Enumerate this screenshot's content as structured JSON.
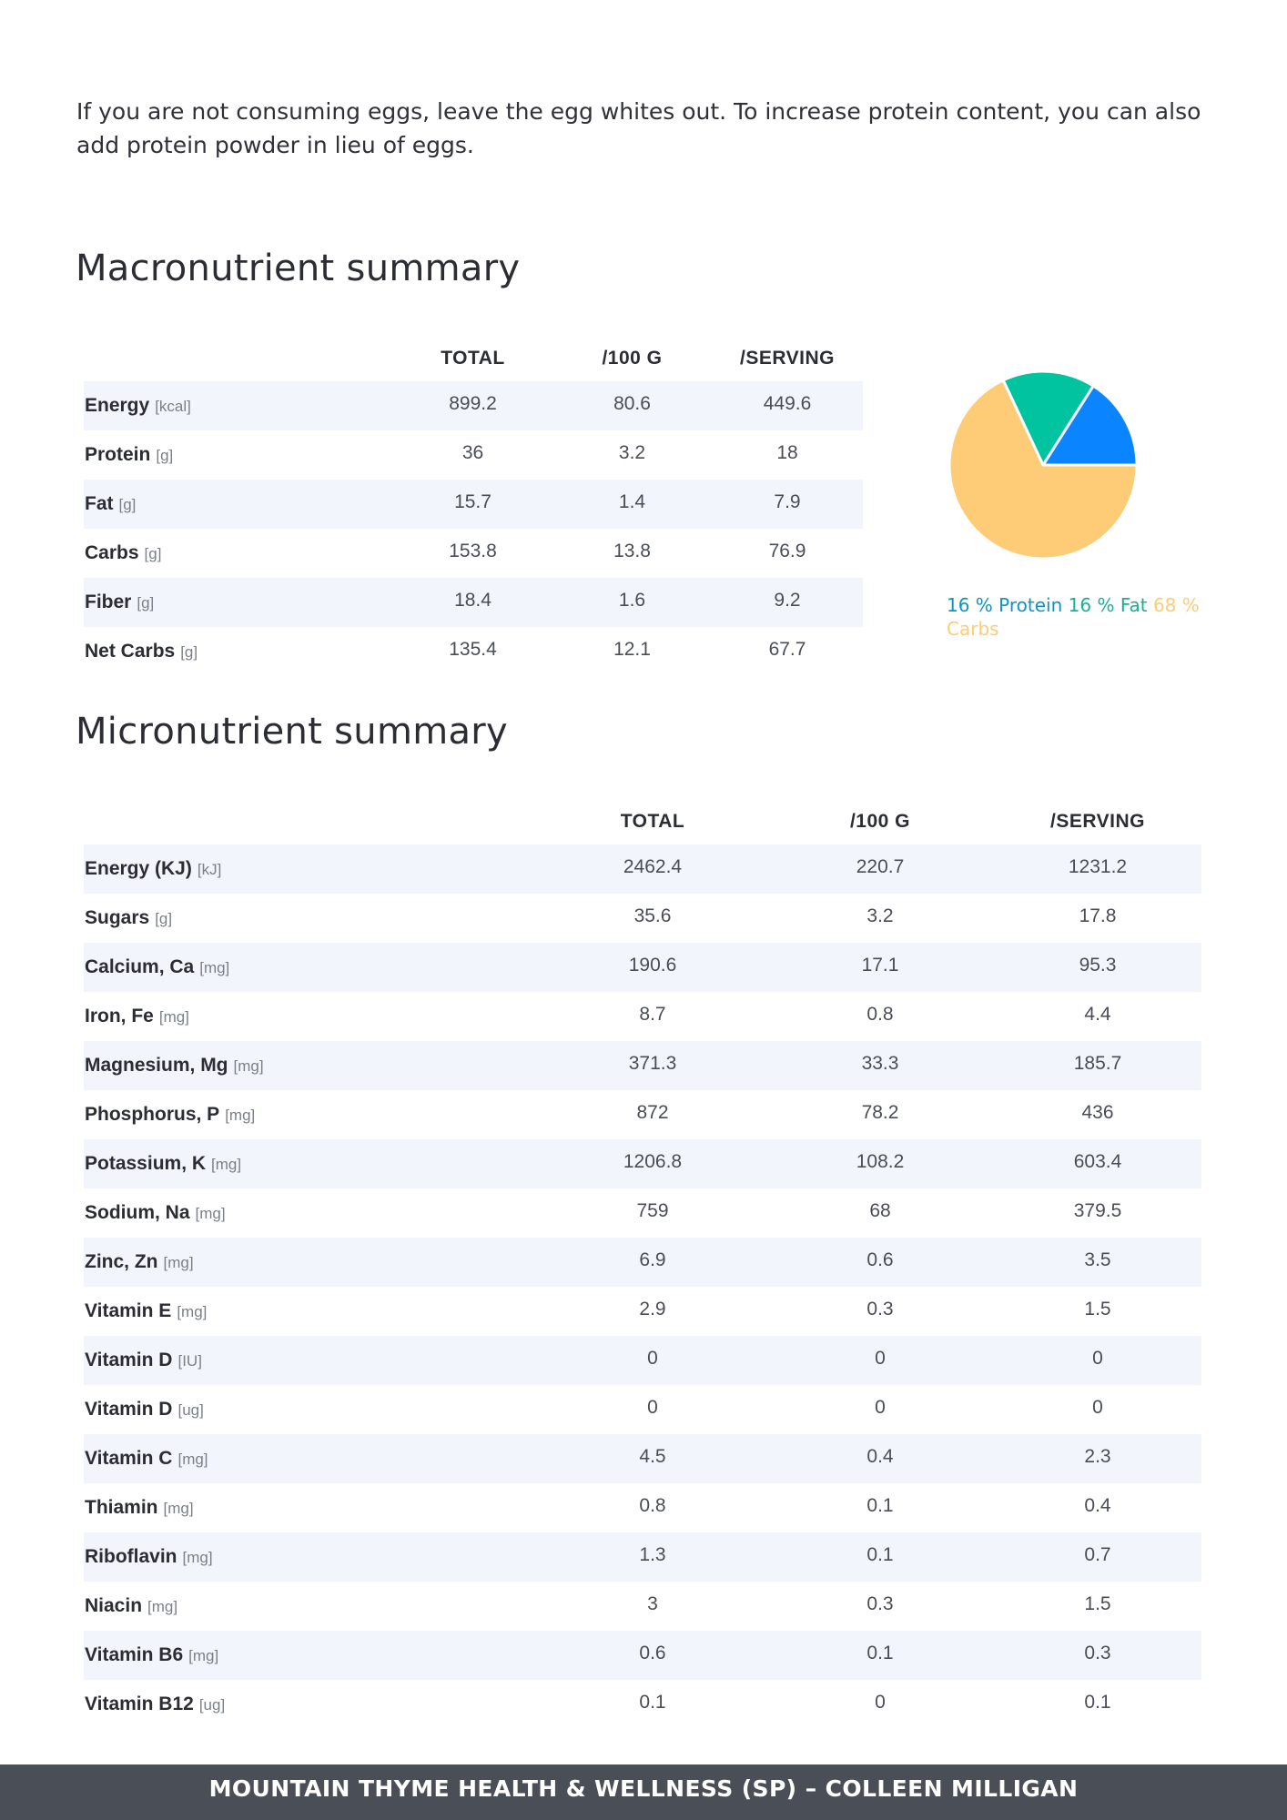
{
  "intro_text": "If you are not consuming eggs, leave the egg whites out. To increase protein content, you can also add protein powder in lieu of eggs.",
  "macro": {
    "title": "Macronutrient summary",
    "headers": [
      "",
      "TOTAL",
      "/100 G",
      "/SERVING"
    ],
    "rows": [
      {
        "name": "Energy",
        "unit": "[kcal]",
        "total": "899.2",
        "per100g": "80.6",
        "serving": "449.6"
      },
      {
        "name": "Protein",
        "unit": "[g]",
        "total": "36",
        "per100g": "3.2",
        "serving": "18"
      },
      {
        "name": "Fat",
        "unit": "[g]",
        "total": "15.7",
        "per100g": "1.4",
        "serving": "7.9"
      },
      {
        "name": "Carbs",
        "unit": "[g]",
        "total": "153.8",
        "per100g": "13.8",
        "serving": "76.9"
      },
      {
        "name": "Fiber",
        "unit": "[g]",
        "total": "18.4",
        "per100g": "1.6",
        "serving": "9.2"
      },
      {
        "name": "Net Carbs",
        "unit": "[g]",
        "total": "135.4",
        "per100g": "12.1",
        "serving": "67.7"
      }
    ]
  },
  "chart_data": {
    "type": "pie",
    "categories": [
      "Protein",
      "Fat",
      "Carbs"
    ],
    "values": [
      16,
      16,
      68
    ],
    "colors": [
      "#0a84ff",
      "#00c49f",
      "#fecb76"
    ],
    "legend_text_colors": [
      "#0e93c4",
      "#1aaf98",
      "#fecb76"
    ],
    "legend": [
      {
        "pct": "16 %",
        "label": "Protein"
      },
      {
        "pct": "16 %",
        "label": "Fat"
      },
      {
        "pct": "68 %",
        "label": "Carbs"
      }
    ],
    "legend_placement": "bottom"
  },
  "micro": {
    "title": "Micronutrient summary",
    "headers": [
      "",
      "TOTAL",
      "/100 G",
      "/SERVING"
    ],
    "rows": [
      {
        "name": "Energy (KJ)",
        "unit": "[kJ]",
        "total": "2462.4",
        "per100g": "220.7",
        "serving": "1231.2"
      },
      {
        "name": "Sugars",
        "unit": "[g]",
        "total": "35.6",
        "per100g": "3.2",
        "serving": "17.8"
      },
      {
        "name": "Calcium, Ca",
        "unit": "[mg]",
        "total": "190.6",
        "per100g": "17.1",
        "serving": "95.3"
      },
      {
        "name": "Iron, Fe",
        "unit": "[mg]",
        "total": "8.7",
        "per100g": "0.8",
        "serving": "4.4"
      },
      {
        "name": "Magnesium, Mg",
        "unit": "[mg]",
        "total": "371.3",
        "per100g": "33.3",
        "serving": "185.7"
      },
      {
        "name": "Phosphorus, P",
        "unit": "[mg]",
        "total": "872",
        "per100g": "78.2",
        "serving": "436"
      },
      {
        "name": "Potassium, K",
        "unit": "[mg]",
        "total": "1206.8",
        "per100g": "108.2",
        "serving": "603.4"
      },
      {
        "name": "Sodium, Na",
        "unit": "[mg]",
        "total": "759",
        "per100g": "68",
        "serving": "379.5"
      },
      {
        "name": "Zinc, Zn",
        "unit": "[mg]",
        "total": "6.9",
        "per100g": "0.6",
        "serving": "3.5"
      },
      {
        "name": "Vitamin E",
        "unit": "[mg]",
        "total": "2.9",
        "per100g": "0.3",
        "serving": "1.5"
      },
      {
        "name": "Vitamin  D",
        "unit": "[IU]",
        "total": "0",
        "per100g": "0",
        "serving": "0"
      },
      {
        "name": "Vitamin D",
        "unit": "[ug]",
        "total": "0",
        "per100g": "0",
        "serving": "0"
      },
      {
        "name": "Vitamin C",
        "unit": "[mg]",
        "total": "4.5",
        "per100g": "0.4",
        "serving": "2.3"
      },
      {
        "name": "Thiamin",
        "unit": "[mg]",
        "total": "0.8",
        "per100g": "0.1",
        "serving": "0.4"
      },
      {
        "name": "Riboflavin",
        "unit": "[mg]",
        "total": "1.3",
        "per100g": "0.1",
        "serving": "0.7"
      },
      {
        "name": "Niacin",
        "unit": "[mg]",
        "total": "3",
        "per100g": "0.3",
        "serving": "1.5"
      },
      {
        "name": "Vitamin B6",
        "unit": "[mg]",
        "total": "0.6",
        "per100g": "0.1",
        "serving": "0.3"
      },
      {
        "name": "Vitamin B12",
        "unit": "[ug]",
        "total": "0.1",
        "per100g": "0",
        "serving": "0.1"
      }
    ]
  },
  "footer_text": "MOUNTAIN THYME HEALTH & WELLNESS (SP) – COLLEEN MILLIGAN"
}
